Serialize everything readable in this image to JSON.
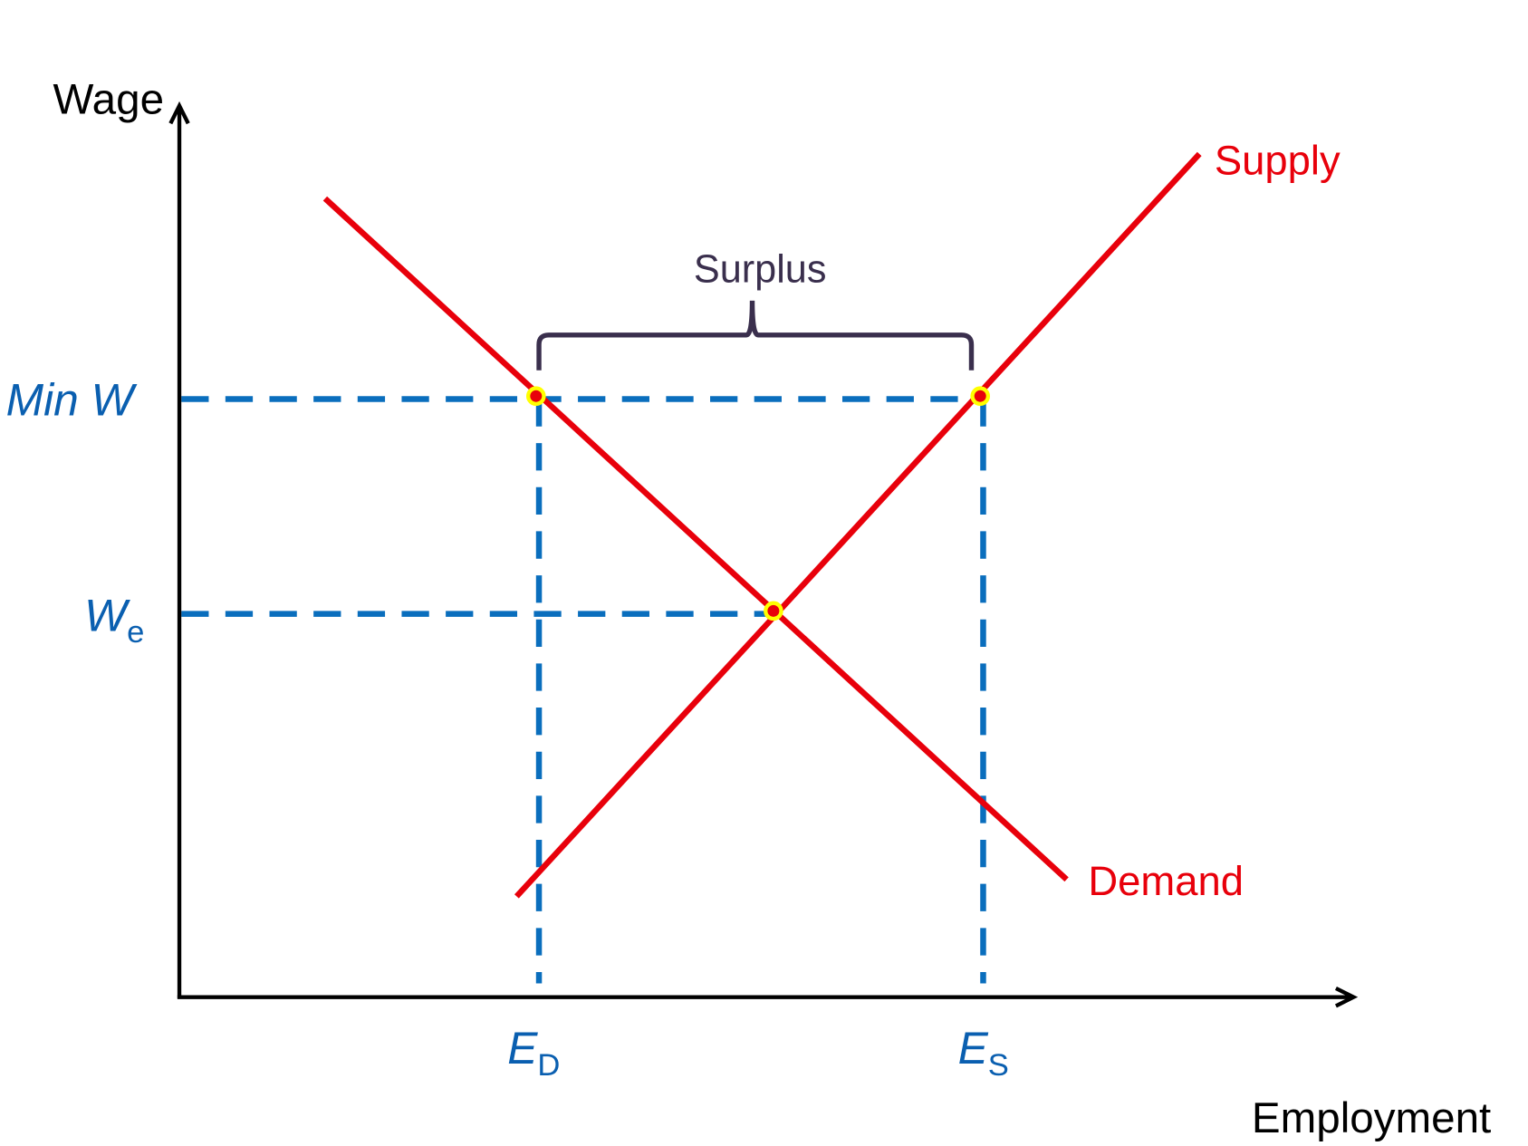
{
  "chart_data": {
    "type": "line",
    "xlabel": "Employment",
    "ylabel": "Wage",
    "xlim": [
      0,
      100
    ],
    "ylim": [
      0,
      100
    ],
    "grid": false,
    "series": [
      {
        "name": "Supply",
        "color": "#e8000b",
        "points": [
          [
            28.7,
            11.3
          ],
          [
            86.8,
            94.6
          ]
        ]
      },
      {
        "name": "Demand",
        "color": "#e8000b",
        "points": [
          [
            12.4,
            89.6
          ],
          [
            75.5,
            13.2
          ]
        ]
      }
    ],
    "reference_lines": {
      "color": "#0a6ebd",
      "min_wage": {
        "label": "Min W",
        "y": 67.1
      },
      "equilibrium_wage": {
        "label": "W",
        "sub": "e",
        "y": 43.0
      },
      "employment_demanded": {
        "label": "E",
        "sub": "D",
        "x": 30.6
      },
      "employment_supplied": {
        "label": "E",
        "sub": "S",
        "x": 68.4
      }
    },
    "points": [
      {
        "x": 30.6,
        "y": 67.1
      },
      {
        "x": 68.4,
        "y": 67.1
      },
      {
        "x": 50.8,
        "y": 43.0
      }
    ],
    "point_colors": {
      "fill": "#e8000b",
      "ring": "#ffff00"
    },
    "annotation": {
      "label": "Surplus",
      "from_x": 30.6,
      "to_x": 67.4,
      "color": "#3a2f4d"
    }
  }
}
